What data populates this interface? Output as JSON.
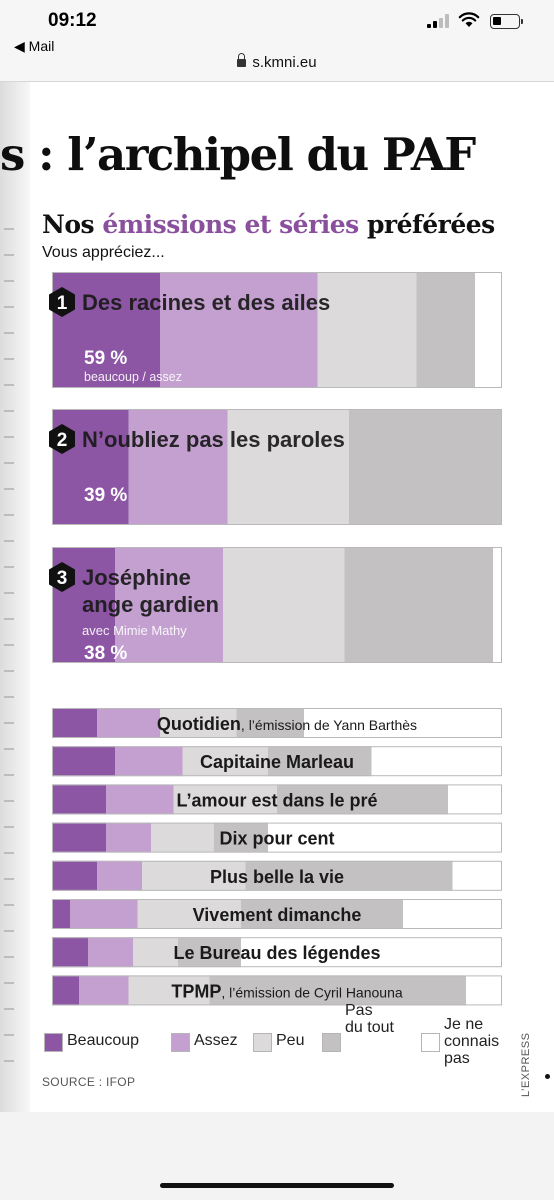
{
  "status_bar": {
    "time": "09:12",
    "back_label": "Mail",
    "url": "s.kmni.eu"
  },
  "article": {
    "headline": "s : l’archipel du PAF",
    "subtitle_parts": [
      "Nos ",
      "émissions et séries",
      " préférées"
    ],
    "question": "Vous appréciez...",
    "source": "SOURCE : IFOP",
    "brand": "L’EXPRESS"
  },
  "colors": {
    "beaucoup": "#8c56a4",
    "assez": "#c3a0cf",
    "peu": "#dcdadb",
    "pas_du_tout": "#c4c1c2",
    "ne_connais_pas": "#ffffff",
    "subtitle_accent": "#8a4f9d"
  },
  "chart_data": {
    "type": "bar",
    "orientation": "horizontal-stacked",
    "unit": "%",
    "categories_legend": [
      "Beaucoup",
      "Assez",
      "Peu",
      "Pas du tout",
      "Je ne connais pas"
    ],
    "top3": [
      {
        "rank": "1",
        "name": "Des racines et des ailes",
        "note": "",
        "pct_label": "59 %",
        "pct_note": "beaucoup / assez",
        "values": [
          24,
          35,
          22,
          13,
          6
        ]
      },
      {
        "rank": "2",
        "name": "N’oubliez pas les paroles",
        "note": "",
        "pct_label": "39 %",
        "pct_note": "",
        "values": [
          17,
          22,
          27,
          34,
          0
        ]
      },
      {
        "rank": "3",
        "name": "Joséphine ange gardien",
        "name_lines": [
          "Joséphine",
          "ange gardien"
        ],
        "note": "avec Mimie Mathy",
        "pct_label": "38 %",
        "pct_note": "",
        "values": [
          14,
          24,
          27,
          33,
          2
        ]
      }
    ],
    "others": [
      {
        "name": "Quotidien",
        "suffix": ", l’émission de Yann Barthès",
        "values": [
          10,
          14,
          17,
          15,
          44
        ]
      },
      {
        "name": "Capitaine Marleau",
        "suffix": "",
        "values": [
          14,
          15,
          19,
          23,
          29
        ]
      },
      {
        "name": "L’amour est dans le pré",
        "suffix": "",
        "values": [
          12,
          15,
          23,
          38,
          12
        ]
      },
      {
        "name": "Dix pour cent",
        "suffix": "",
        "values": [
          12,
          10,
          14,
          12,
          52
        ]
      },
      {
        "name": "Plus belle la vie",
        "suffix": "",
        "values": [
          10,
          10,
          23,
          46,
          11
        ]
      },
      {
        "name": "Vivement dimanche",
        "suffix": "",
        "values": [
          4,
          15,
          23,
          36,
          22
        ]
      },
      {
        "name": "Le Bureau des légendes",
        "suffix": "",
        "values": [
          8,
          10,
          10,
          14,
          58
        ]
      },
      {
        "name": "TPMP",
        "suffix": ", l’émission de Cyril Hanouna",
        "values": [
          6,
          11,
          18,
          57,
          8
        ]
      }
    ]
  },
  "legend": [
    {
      "label_lines": [
        "Beaucoup"
      ],
      "color": "#8c56a4"
    },
    {
      "label_lines": [
        "Assez"
      ],
      "color": "#c3a0cf"
    },
    {
      "label_lines": [
        "Peu"
      ],
      "color": "#dcdadb"
    },
    {
      "label_lines": [
        "Pas",
        "du tout"
      ],
      "color": "#c4c1c2"
    },
    {
      "label_lines": [
        "Je ne",
        "connais",
        "pas"
      ],
      "color": "#ffffff"
    }
  ]
}
